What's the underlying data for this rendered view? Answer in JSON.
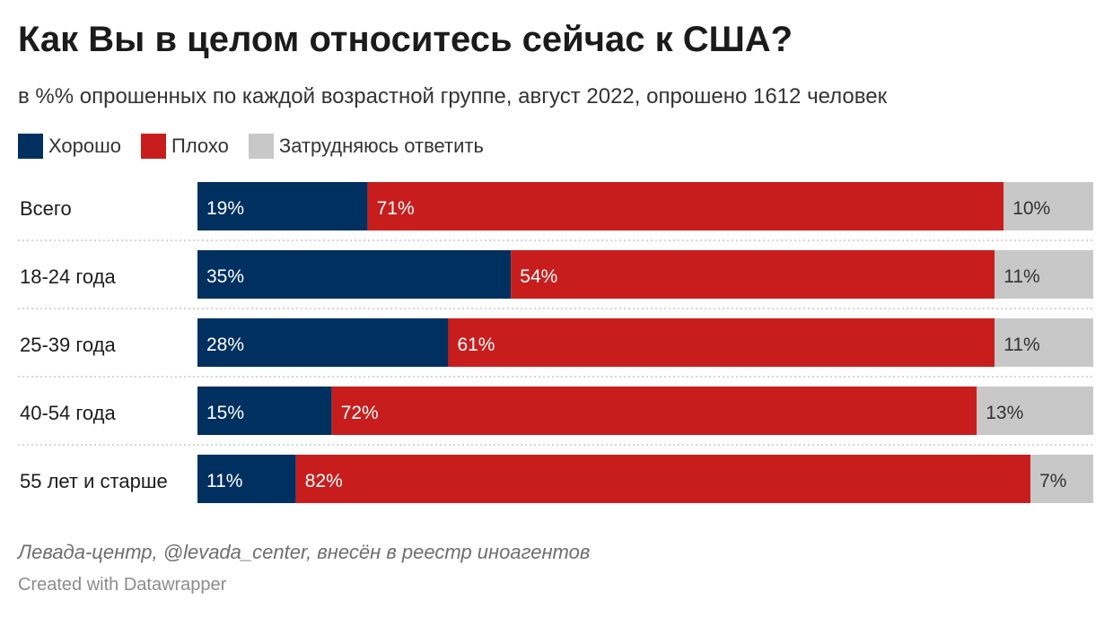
{
  "chart_data": {
    "type": "bar",
    "orientation": "horizontal",
    "stacked": true,
    "title": "Как Вы в целом относитесь сейчас к США?",
    "subtitle": "в %% опрошенных по каждой возрастной группе, август 2022, опрошено 1612 человек",
    "categories": [
      "Всего",
      "18-24 года",
      "25-39 года",
      "40-54 года",
      "55 лет и старше"
    ],
    "series": [
      {
        "name": "Хорошо",
        "color": "#00305f",
        "values": [
          19,
          35,
          28,
          15,
          11
        ]
      },
      {
        "name": "Плохо",
        "color": "#c71e1d",
        "values": [
          71,
          54,
          61,
          72,
          82
        ]
      },
      {
        "name": "Затрудняюсь ответить",
        "color": "#c8c8c8",
        "values": [
          10,
          11,
          11,
          13,
          7
        ]
      }
    ],
    "value_suffix": "%",
    "xlim": [
      0,
      100
    ],
    "legend_position": "top-left",
    "grid": false
  },
  "footer": {
    "source": "Левада-центр, @levada_center, внесён в реестр иноагентов",
    "credit": "Created with Datawrapper"
  }
}
